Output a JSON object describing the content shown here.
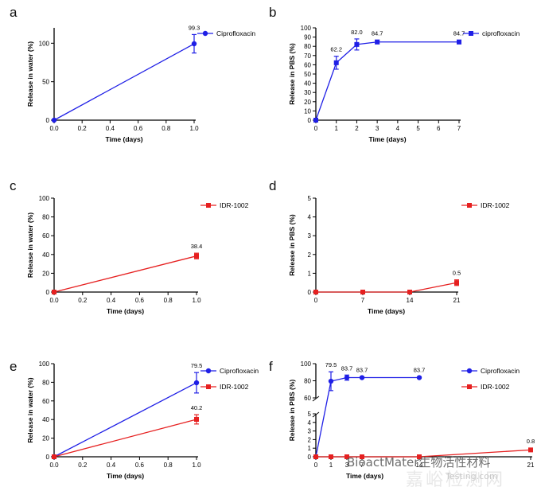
{
  "panel_letters": [
    "a",
    "b",
    "c",
    "d",
    "e",
    "f"
  ],
  "watermark": {
    "account": "BioactMater生物活性材料",
    "site_cn": "嘉峪检测网",
    "site_url": "Testing.com"
  },
  "colors": {
    "blue": "#1f1fe6",
    "red": "#e62020",
    "axis": "#000000"
  },
  "chart_data": [
    {
      "type": "line",
      "panel": "a",
      "xlabel": "Time (days)",
      "ylabel": "Release in water (%)",
      "xlim": [
        0,
        1.0
      ],
      "ylim": [
        0,
        120
      ],
      "xticks": [
        0,
        0.2,
        0.4,
        0.6,
        0.8,
        1.0
      ],
      "xtick_labels": [
        "0.0",
        "0.2",
        "0.4",
        "0.6",
        "0.8",
        "1.0"
      ],
      "yticks": [
        0,
        50,
        100
      ],
      "ytick_labels": [
        "0",
        "50",
        "100"
      ],
      "legend": "top-right",
      "series": [
        {
          "name": "Ciprofloxacin",
          "color": "blue",
          "marker": "circle",
          "x": [
            0,
            1.0
          ],
          "y": [
            0,
            99.3
          ],
          "err": [
            0,
            12
          ],
          "labels": [
            "",
            "99.3"
          ]
        }
      ]
    },
    {
      "type": "line",
      "panel": "b",
      "xlabel": "Time (days)",
      "ylabel": "Release in PBS (%)",
      "xlim": [
        0,
        7
      ],
      "ylim": [
        0,
        100
      ],
      "xticks": [
        0,
        1,
        2,
        3,
        4,
        5,
        6,
        7
      ],
      "xtick_labels": [
        "0",
        "1",
        "2",
        "3",
        "4",
        "5",
        "6",
        "7"
      ],
      "yticks": [
        0,
        10,
        20,
        30,
        40,
        50,
        60,
        70,
        80,
        90,
        100
      ],
      "ytick_labels": [
        "0",
        "10",
        "20",
        "30",
        "40",
        "50",
        "60",
        "70",
        "80",
        "90",
        "100"
      ],
      "legend": "top-right",
      "series": [
        {
          "name": "ciprofloxacin",
          "color": "blue",
          "marker": "square",
          "x": [
            0,
            1,
            2,
            3,
            7
          ],
          "y": [
            0,
            62.2,
            82.0,
            84.7,
            84.7
          ],
          "err": [
            0,
            7,
            6,
            2,
            2
          ],
          "labels": [
            "",
            "62.2",
            "82.0",
            "84.7",
            "84.7"
          ]
        }
      ]
    },
    {
      "type": "line",
      "panel": "c",
      "xlabel": "Time (days)",
      "ylabel": "Release in water (%)",
      "xlim": [
        0,
        1.0
      ],
      "ylim": [
        0,
        100
      ],
      "xticks": [
        0,
        0.2,
        0.4,
        0.6,
        0.8,
        1.0
      ],
      "xtick_labels": [
        "0.0",
        "0.2",
        "0.4",
        "0.6",
        "0.8",
        "1.0"
      ],
      "yticks": [
        0,
        20,
        40,
        60,
        80,
        100
      ],
      "ytick_labels": [
        "0",
        "20",
        "40",
        "60",
        "80",
        "100"
      ],
      "legend": "top-right",
      "series": [
        {
          "name": "IDR-1002",
          "color": "red",
          "marker": "square",
          "x": [
            0,
            1.0
          ],
          "y": [
            0,
            38.4
          ],
          "err": [
            0,
            3
          ],
          "labels": [
            "",
            "38.4"
          ]
        }
      ]
    },
    {
      "type": "line",
      "panel": "d",
      "xlabel": "Time (days)",
      "ylabel": "Release in PBS (%)",
      "xlim": [
        0,
        21
      ],
      "ylim": [
        0,
        5
      ],
      "xticks": [
        0,
        7,
        14,
        21
      ],
      "xtick_labels": [
        "0",
        "7",
        "14",
        "21"
      ],
      "yticks": [
        0,
        1,
        2,
        3,
        4,
        5
      ],
      "ytick_labels": [
        "0",
        "1",
        "2",
        "3",
        "4",
        "5"
      ],
      "legend": "top-right",
      "series": [
        {
          "name": "IDR-1002",
          "color": "red",
          "marker": "square",
          "x": [
            0,
            7,
            14,
            21
          ],
          "y": [
            0,
            0,
            0,
            0.5
          ],
          "err": [
            0,
            0,
            0,
            0.15
          ],
          "labels": [
            "",
            "",
            "",
            "0.5"
          ]
        }
      ]
    },
    {
      "type": "line",
      "panel": "e",
      "xlabel": "Time (days)",
      "ylabel": "Release in water (%)",
      "xlim": [
        0,
        1.0
      ],
      "ylim": [
        0,
        100
      ],
      "xticks": [
        0,
        0.2,
        0.4,
        0.6,
        0.8,
        1.0
      ],
      "xtick_labels": [
        "0.0",
        "0.2",
        "0.4",
        "0.6",
        "0.8",
        "1.0"
      ],
      "yticks": [
        0,
        20,
        40,
        60,
        80,
        100
      ],
      "ytick_labels": [
        "0",
        "20",
        "40",
        "60",
        "80",
        "100"
      ],
      "legend": "top-right",
      "series": [
        {
          "name": "Ciprofloxacin",
          "color": "blue",
          "marker": "circle",
          "x": [
            0,
            1.0
          ],
          "y": [
            0,
            79.5
          ],
          "err": [
            0,
            11
          ],
          "labels": [
            "",
            "79.5"
          ]
        },
        {
          "name": "IDR-1002",
          "color": "red",
          "marker": "square",
          "x": [
            0,
            1.0
          ],
          "y": [
            0,
            40.2
          ],
          "err": [
            0,
            5
          ],
          "labels": [
            "",
            "40.2"
          ]
        }
      ]
    },
    {
      "type": "line",
      "panel": "f",
      "xlabel": "Time (days)",
      "ylabel": "Release in PBS (%)",
      "xlim": [
        0,
        21
      ],
      "ylim_lower": [
        0,
        5
      ],
      "ylim_upper": [
        60,
        100
      ],
      "xticks": [
        0,
        1,
        3,
        7,
        14,
        21
      ],
      "xtick_labels": [
        "0",
        "1",
        "3",
        "7",
        "14",
        "21"
      ],
      "yticks_lower": [
        0,
        1,
        2,
        3,
        4,
        5
      ],
      "ytick_labels_lower": [
        "0",
        "1",
        "2",
        "3",
        "4",
        "5"
      ],
      "yticks_upper": [
        60,
        80,
        100
      ],
      "ytick_labels_upper": [
        "60",
        "80",
        "100"
      ],
      "legend": "top-right",
      "series": [
        {
          "name": "Ciprofloxacin",
          "color": "blue",
          "marker": "circle",
          "x": [
            0,
            1,
            3,
            7,
            14
          ],
          "y": [
            0,
            79.5,
            83.7,
            83.7,
            83.7
          ],
          "err": [
            0,
            11,
            3,
            0.8,
            0.8
          ],
          "labels": [
            "",
            "79.5",
            "83.7",
            "83.7",
            "83.7"
          ]
        },
        {
          "name": "IDR-1002",
          "color": "red",
          "marker": "square",
          "x": [
            0,
            1,
            3,
            7,
            14,
            21
          ],
          "y": [
            0,
            0,
            0,
            0,
            0,
            0.8
          ],
          "err": [
            0,
            0,
            0,
            0,
            0,
            0.2
          ],
          "labels": [
            "",
            "",
            "",
            "",
            "",
            "0.8"
          ]
        }
      ]
    }
  ]
}
